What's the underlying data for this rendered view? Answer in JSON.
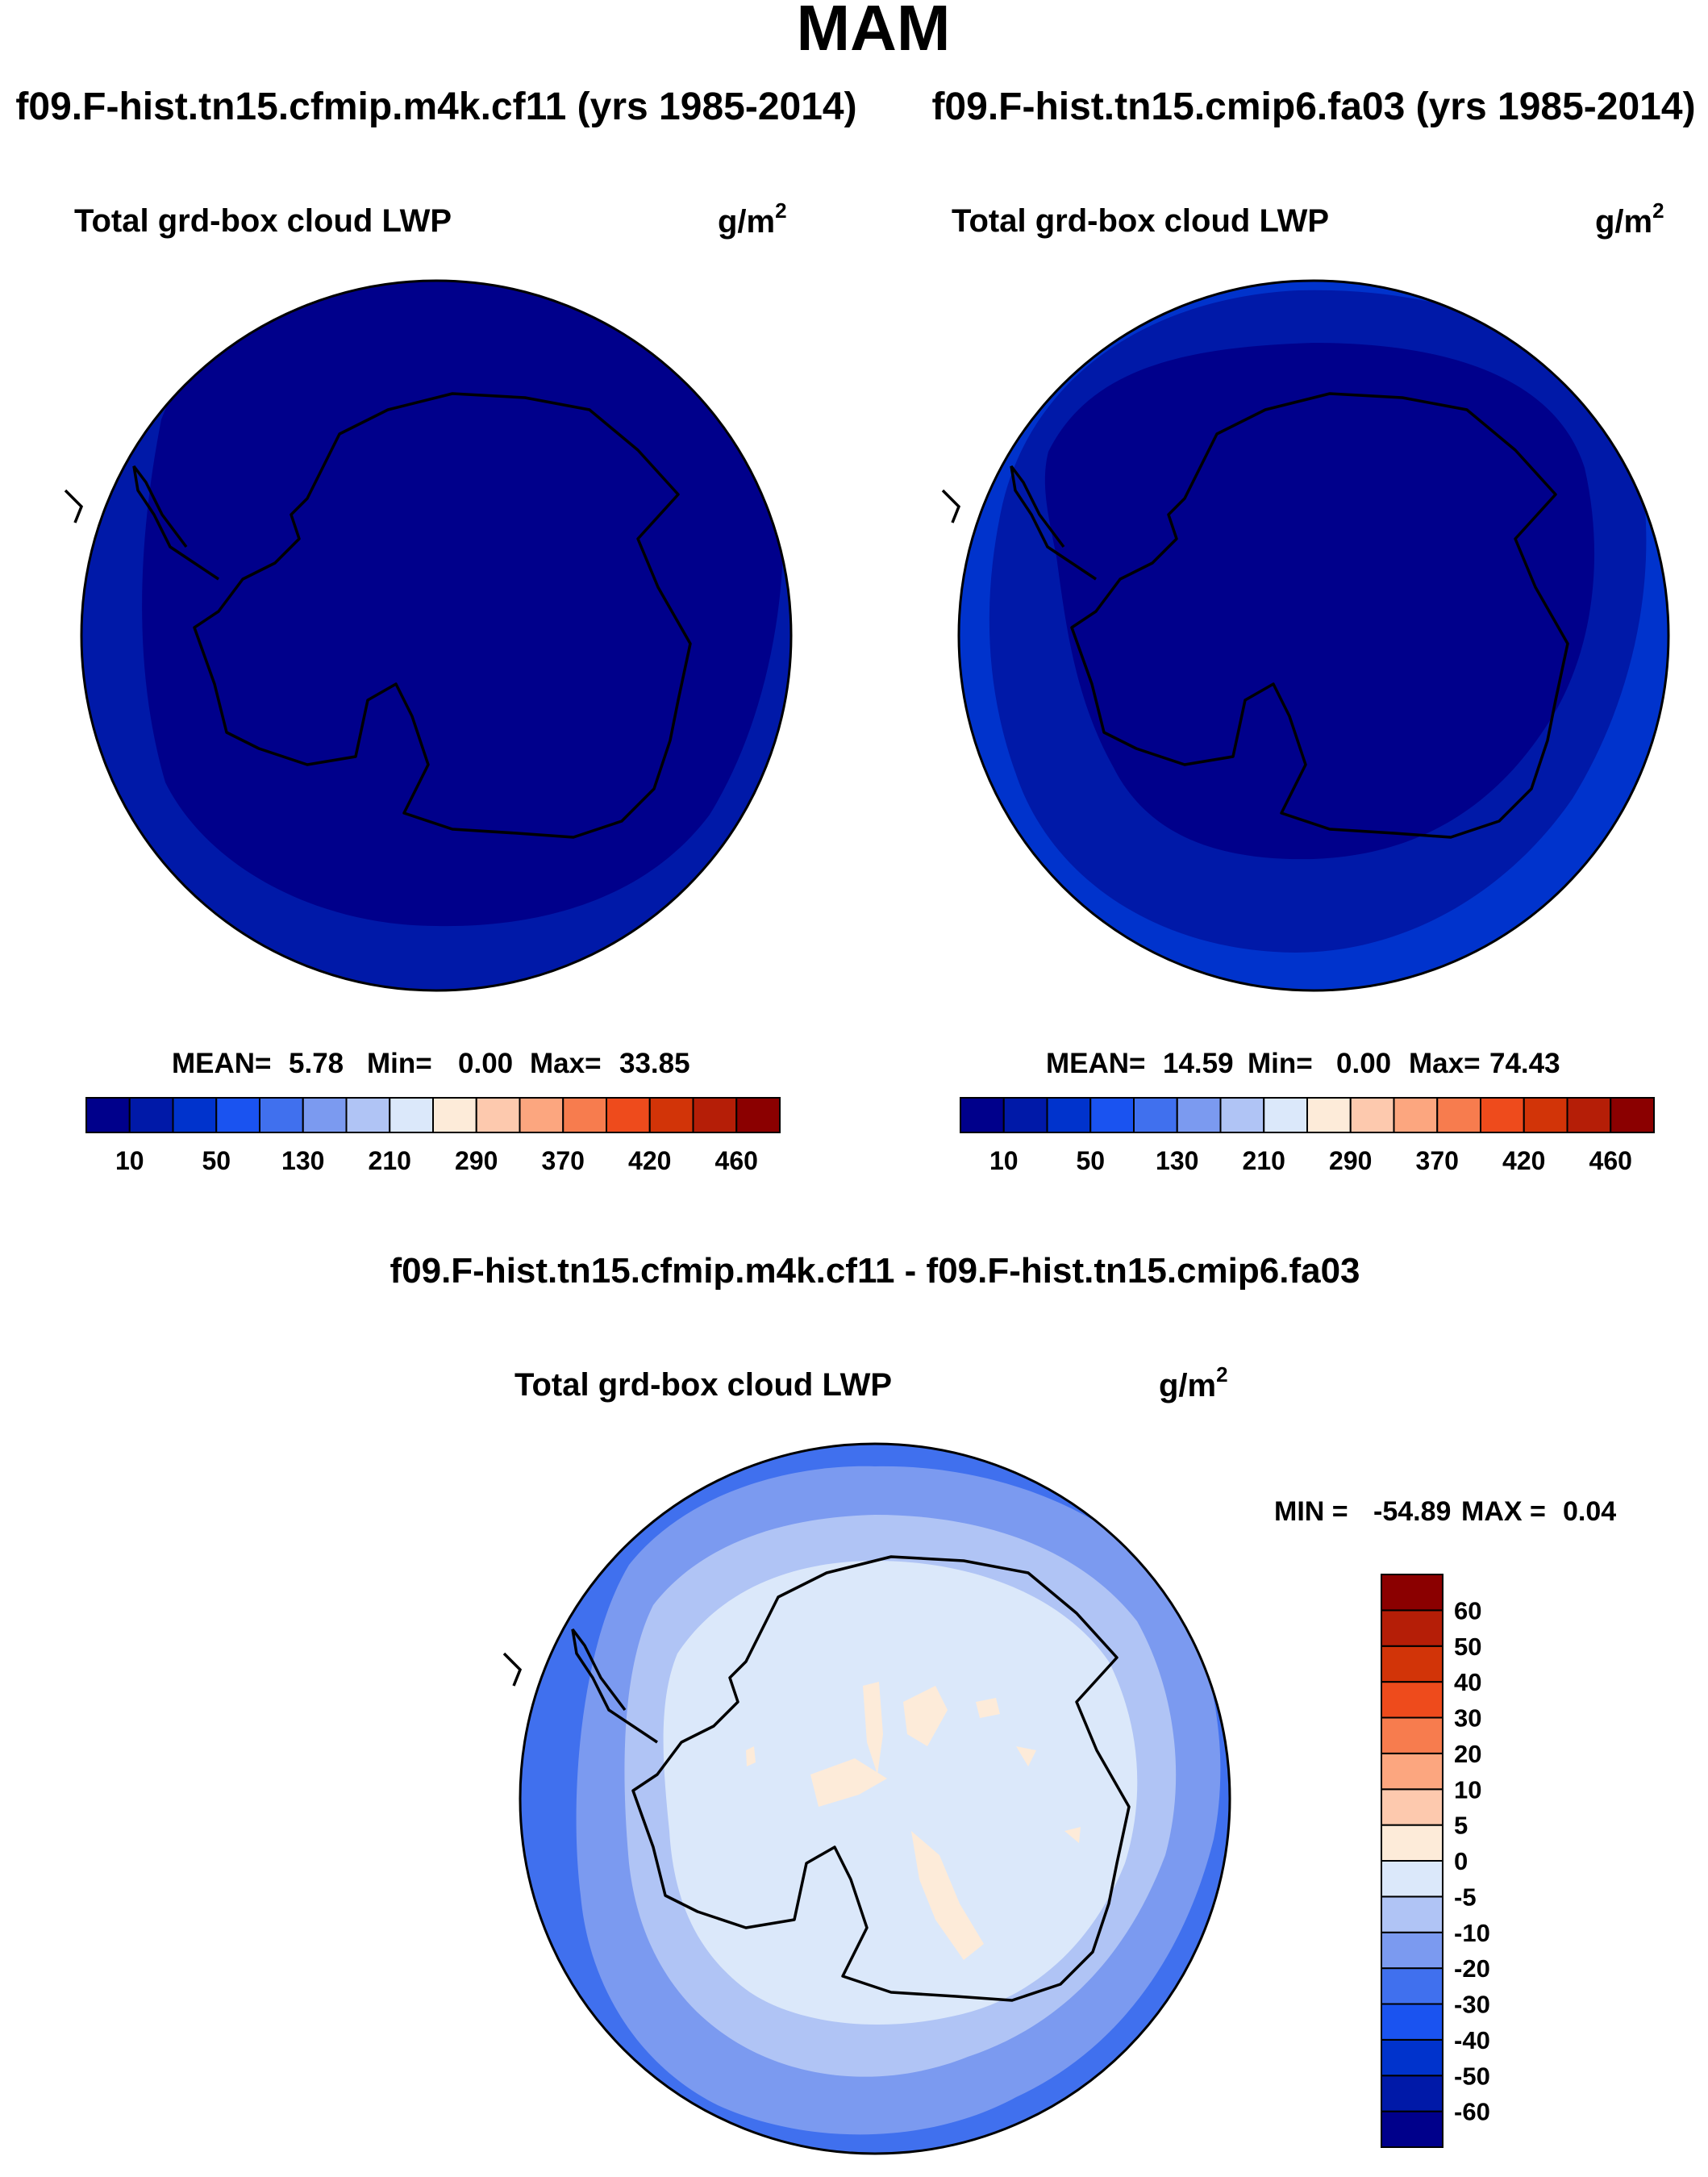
{
  "figure": {
    "season": "MAM",
    "diff_title": "f09.F-hist.tn15.cfmip.m4k.cf11 - f09.F-hist.tn15.cmip6.fa03"
  },
  "chart_data": [
    {
      "type": "heatmap",
      "title": "f09.F-hist.tn15.cfmip.m4k.cf11 (yrs 1985-2014)",
      "variable": "Total grd-box cloud LWP",
      "units": "g/m",
      "units_exp": "2",
      "projection": "south-polar-stereographic",
      "stats": {
        "mean_label": "MEAN=",
        "mean": "5.78",
        "min_label": "Min=",
        "min": "0.00",
        "max_label": "Max=",
        "max": "33.85"
      },
      "levels": [
        10,
        30,
        50,
        80,
        130,
        170,
        210,
        250,
        290,
        330,
        370,
        400,
        420,
        440,
        460
      ],
      "tick_labels": [
        "10",
        "50",
        "130",
        "210",
        "290",
        "370",
        "420",
        "460"
      ],
      "colors": [
        "#00008b",
        "#0019a8",
        "#0033cc",
        "#1a53f0",
        "#4070ee",
        "#7b9af0",
        "#b0c4f5",
        "#dbe8fa",
        "#fdebd9",
        "#fdc9ae",
        "#fca67f",
        "#f77c4e",
        "#ee4b1c",
        "#d23408",
        "#b51e07",
        "#8b0000"
      ],
      "regions": [
        {
          "label": "outer ring",
          "level_index": 1
        },
        {
          "label": "interior",
          "level_index": 0
        }
      ]
    },
    {
      "type": "heatmap",
      "title": "f09.F-hist.tn15.cmip6.fa03 (yrs 1985-2014)",
      "variable": "Total grd-box cloud LWP",
      "units": "g/m",
      "units_exp": "2",
      "projection": "south-polar-stereographic",
      "stats": {
        "mean_label": "MEAN=",
        "mean": "14.59",
        "min_label": "Min=",
        "min": "0.00",
        "max_label": "Max=",
        "max": "74.43"
      },
      "levels": [
        10,
        30,
        50,
        80,
        130,
        170,
        210,
        250,
        290,
        330,
        370,
        400,
        420,
        440,
        460
      ],
      "tick_labels": [
        "10",
        "50",
        "130",
        "210",
        "290",
        "370",
        "420",
        "460"
      ],
      "colors": [
        "#00008b",
        "#0019a8",
        "#0033cc",
        "#1a53f0",
        "#4070ee",
        "#7b9af0",
        "#b0c4f5",
        "#dbe8fa",
        "#fdebd9",
        "#fdc9ae",
        "#fca67f",
        "#f77c4e",
        "#ee4b1c",
        "#d23408",
        "#b51e07",
        "#8b0000"
      ],
      "regions": [
        {
          "label": "outer edge",
          "level_index": 2
        },
        {
          "label": "mid ring",
          "level_index": 1
        },
        {
          "label": "interior",
          "level_index": 0
        }
      ]
    },
    {
      "type": "heatmap",
      "title": "f09.F-hist.tn15.cfmip.m4k.cf11 - f09.F-hist.tn15.cmip6.fa03",
      "variable": "Total grd-box cloud LWP",
      "units": "g/m",
      "units_exp": "2",
      "projection": "south-polar-stereographic",
      "stats": {
        "min_label": "MIN =",
        "min": "-54.89",
        "max_label": "MAX =",
        "max": "0.04"
      },
      "levels": [
        -60,
        -50,
        -40,
        -30,
        -20,
        -10,
        -5,
        0,
        5,
        10,
        20,
        30,
        40,
        50,
        60
      ],
      "tick_labels": [
        "-60",
        "-50",
        "-40",
        "-30",
        "-20",
        "-10",
        "-5",
        "0",
        "5",
        "10",
        "20",
        "30",
        "40",
        "50",
        "60"
      ],
      "colors": [
        "#00008b",
        "#0019a8",
        "#0033cc",
        "#1a53f0",
        "#4070ee",
        "#7b9af0",
        "#b0c4f5",
        "#dbe8fa",
        "#fdebd9",
        "#fdc9ae",
        "#fca67f",
        "#f77c4e",
        "#ee4b1c",
        "#d23408",
        "#b51e07",
        "#8b0000"
      ],
      "regions": [
        {
          "label": "outer ring",
          "level_index": 4
        },
        {
          "label": "ring 2",
          "level_index": 5
        },
        {
          "label": "ring 3",
          "level_index": 6
        },
        {
          "label": "interior",
          "level_index": 7
        },
        {
          "label": "plateau patches",
          "level_index": 8
        }
      ]
    }
  ]
}
